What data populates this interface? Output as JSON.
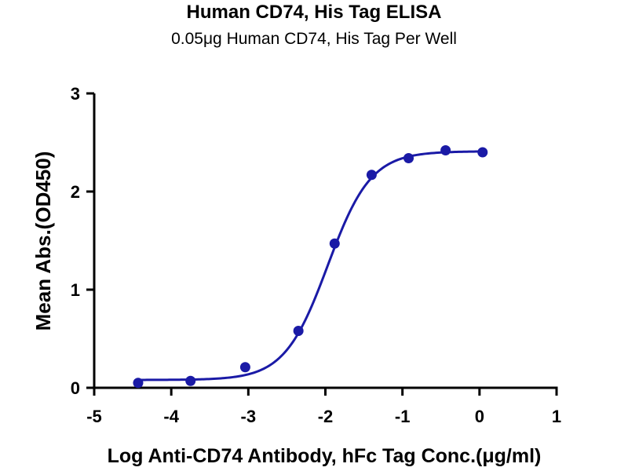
{
  "chart_data": {
    "type": "scatter",
    "title": "Human CD74, His Tag ELISA",
    "subtitle": "0.05μg Human CD74, His Tag Per Well",
    "xlabel": "Log Anti-CD74 Antibody, hFc Tag Conc.(μg/ml)",
    "ylabel": "Mean Abs.(OD450)",
    "xlim": [
      -5,
      1
    ],
    "ylim": [
      0,
      3
    ],
    "xticks": [
      "-5",
      "-4",
      "-3",
      "-2",
      "-1",
      "0",
      "1"
    ],
    "yticks": [
      "0",
      "1",
      "2",
      "3"
    ],
    "grid": false,
    "series": [
      {
        "color": "#1a1aa6",
        "points": [
          {
            "x": -4.43,
            "y": 0.05
          },
          {
            "x": -3.75,
            "y": 0.07
          },
          {
            "x": -3.04,
            "y": 0.21
          },
          {
            "x": -2.35,
            "y": 0.58
          },
          {
            "x": -1.88,
            "y": 1.47
          },
          {
            "x": -1.4,
            "y": 2.17
          },
          {
            "x": -0.92,
            "y": 2.34
          },
          {
            "x": -0.44,
            "y": 2.42
          },
          {
            "x": 0.04,
            "y": 2.4
          }
        ],
        "fit": {
          "bottom": 0.08,
          "top": 2.41,
          "logEC50": -1.97,
          "hill": 1.55
        }
      }
    ]
  }
}
